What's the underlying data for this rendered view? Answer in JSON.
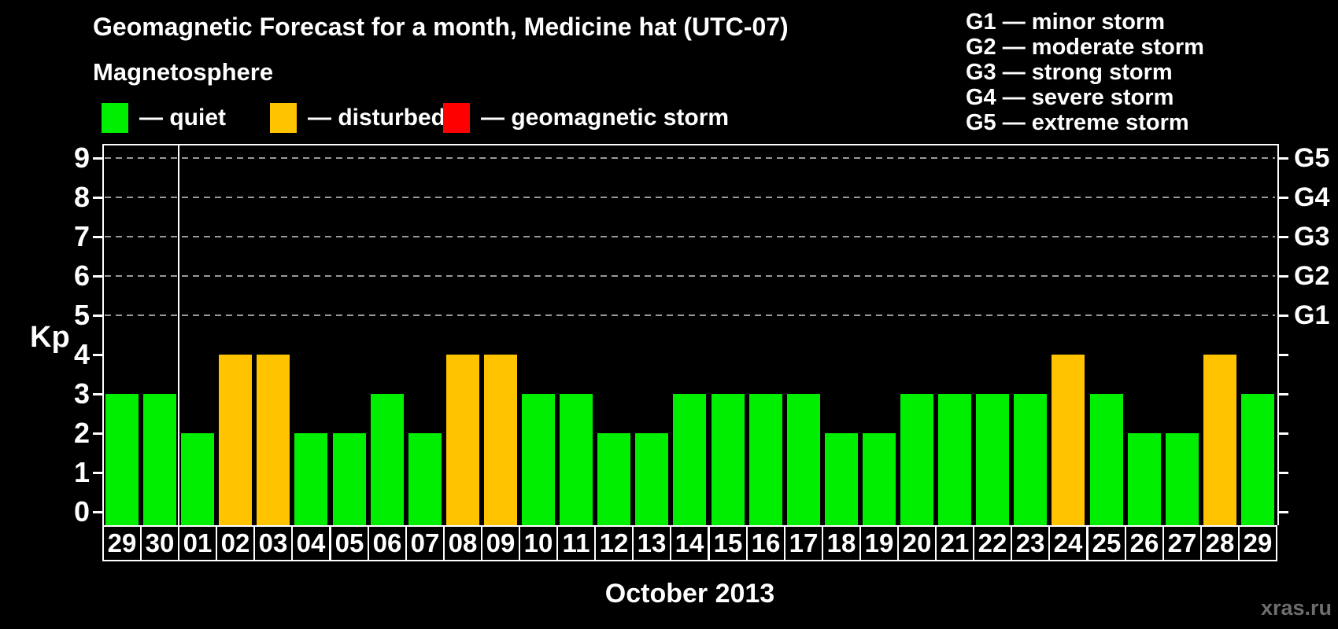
{
  "title": "Geomagnetic Forecast for a month, Medicine hat (UTC-07)",
  "subtitle": "Magnetosphere",
  "legend": {
    "quiet": "— quiet",
    "disturbed": "— disturbed",
    "storm": "— geomagnetic storm"
  },
  "g_legend": [
    "G1 — minor storm",
    "G2 — moderate storm",
    "G3 — strong storm",
    "G4 — severe storm",
    "G5 — extreme storm"
  ],
  "axes": {
    "y_left_label": "Kp",
    "y_left_ticks": [
      0,
      1,
      2,
      3,
      4,
      5,
      6,
      7,
      8,
      9
    ],
    "y_right_ticks": [
      "G1",
      "G2",
      "G3",
      "G4",
      "G5"
    ],
    "x_label": "October 2013"
  },
  "watermark": "xras.ru",
  "colors": {
    "quiet": "#00ee00",
    "disturbed": "#ffc300",
    "storm": "#ff0000",
    "grid": "#999999",
    "axis": "#ffffff",
    "watermark": "#6e6e6e"
  },
  "chart_data": {
    "type": "bar",
    "title": "Geomagnetic Forecast for a month, Medicine hat (UTC-07)",
    "xlabel": "October 2013",
    "ylabel": "Kp",
    "ylim": [
      0,
      9
    ],
    "grid": "dashed horizontal lines at Kp 5-9 only",
    "legend_position": "top",
    "categories": [
      "29",
      "30",
      "01",
      "02",
      "03",
      "04",
      "05",
      "06",
      "07",
      "08",
      "09",
      "10",
      "11",
      "12",
      "13",
      "14",
      "15",
      "16",
      "17",
      "18",
      "19",
      "20",
      "21",
      "22",
      "23",
      "24",
      "25",
      "26",
      "27",
      "28",
      "29"
    ],
    "values": [
      3,
      3,
      2,
      4,
      4,
      2,
      2,
      3,
      2,
      4,
      4,
      3,
      3,
      2,
      2,
      3,
      3,
      3,
      3,
      2,
      2,
      3,
      3,
      3,
      3,
      4,
      3,
      2,
      2,
      4,
      3
    ],
    "statuses": [
      "quiet",
      "quiet",
      "quiet",
      "disturbed",
      "disturbed",
      "quiet",
      "quiet",
      "quiet",
      "quiet",
      "disturbed",
      "disturbed",
      "quiet",
      "quiet",
      "quiet",
      "quiet",
      "quiet",
      "quiet",
      "quiet",
      "quiet",
      "quiet",
      "quiet",
      "quiet",
      "quiet",
      "quiet",
      "quiet",
      "disturbed",
      "quiet",
      "quiet",
      "quiet",
      "disturbed",
      "quiet"
    ],
    "month_boundary_after_index": 1,
    "right_axis_mapping": {
      "G1": 5,
      "G2": 6,
      "G3": 7,
      "G4": 8,
      "G5": 9
    }
  }
}
